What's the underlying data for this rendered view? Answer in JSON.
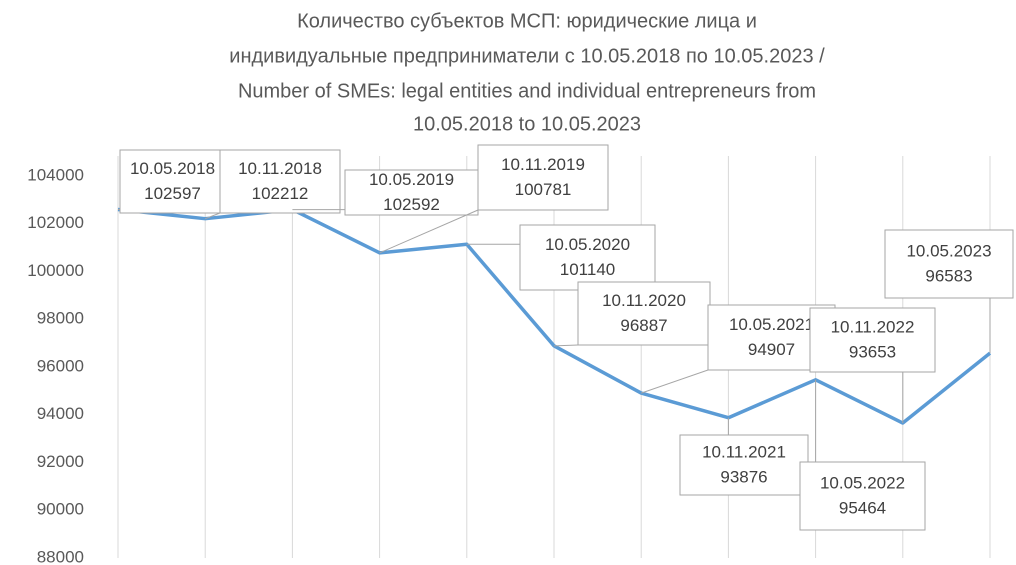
{
  "chart_data": {
    "type": "line",
    "title": [
      "Количество субъектов МСП: юридические лица и",
      "индивидуальные предприниматели с 10.05.2018 по 10.05.2023 /",
      "Number of SMEs: legal entities and individual entrepreneurs from",
      "10.05.2018 to 10.05.2023"
    ],
    "categories": [
      "10.05.2018",
      "10.11.2018",
      "10.05.2019",
      "10.11.2019",
      "10.05.2020",
      "10.11.2020",
      "10.05.2021",
      "10.11.2021",
      "10.05.2022",
      "10.11.2022",
      "10.05.2023"
    ],
    "series": [
      {
        "name": "Number of SMEs",
        "color": "#5b9bd5",
        "values": [
          102597,
          102212,
          102592,
          100781,
          101140,
          96887,
          94907,
          93876,
          95464,
          93653,
          96583
        ]
      }
    ],
    "ylim": [
      88000,
      104000
    ],
    "yticks": [
      88000,
      90000,
      92000,
      94000,
      96000,
      98000,
      100000,
      102000,
      104000
    ],
    "grid": true
  }
}
